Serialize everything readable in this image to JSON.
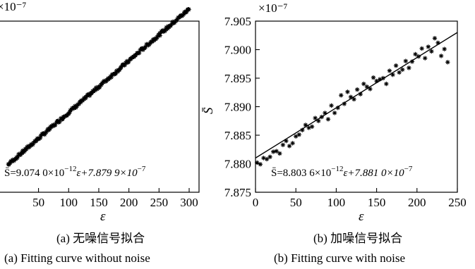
{
  "chart_data": [
    {
      "type": "scatter",
      "panel": "a",
      "title": "",
      "xlabel": "ε",
      "ylabel": "",
      "scale_label": "×10⁻⁷",
      "xlim": [
        0,
        300
      ],
      "ylim": [
        7.875,
        7.905
      ],
      "xticks": [
        "50",
        "100",
        "150",
        "200",
        "250",
        "300"
      ],
      "fit": {
        "slope_per_unit": 9.074e-12,
        "intercept_e7": 7.8799,
        "label_left": "S̄=9.074 0×10",
        "label_exp": "−12",
        "label_right": "ε+7.879 9×10",
        "label_exp2": "−7"
      },
      "series": [
        {
          "points": "dense noise-free scatter along fitted line from ε=0 to ε=300"
        }
      ],
      "caption_cn": "(a)  无噪信号拟合",
      "caption_en": "(a)  Fitting curve without noise"
    },
    {
      "type": "scatter",
      "panel": "b",
      "title": "",
      "xlabel": "ε",
      "ylabel": "S̄",
      "scale_label": "×10⁻⁷",
      "xlim": [
        0,
        250
      ],
      "ylim": [
        7.875,
        7.905
      ],
      "yticks": [
        "7.905",
        "7.900",
        "7.895",
        "7.890",
        "7.885",
        "7.880",
        "7.875"
      ],
      "xticks": [
        "0",
        "50",
        "100",
        "150",
        "200",
        "250"
      ],
      "fit": {
        "slope_per_unit": 8.8036e-12,
        "intercept_e7": 7.881,
        "label_left": "S̄=8.803 6×10",
        "label_exp": "−12",
        "label_right": "ε+7.881 0×10",
        "label_exp2": "−7"
      },
      "series": [
        {
          "x": [
            2,
            6,
            10,
            14,
            18,
            22,
            26,
            30,
            34,
            38,
            42,
            46,
            50,
            54,
            58,
            62,
            66,
            70,
            74,
            78,
            82,
            86,
            90,
            94,
            98,
            102,
            106,
            110,
            114,
            118,
            122,
            126,
            130,
            134,
            138,
            142,
            146,
            150,
            154,
            158,
            162,
            166,
            170,
            174,
            178,
            182,
            186,
            190,
            194,
            198,
            202,
            206,
            210,
            214,
            218,
            222,
            226,
            230,
            234,
            238
          ],
          "y": [
            7.8802,
            7.8799,
            7.881,
            7.8808,
            7.8812,
            7.8821,
            7.8822,
            7.8818,
            7.8833,
            7.884,
            7.8831,
            7.8836,
            7.8848,
            7.8851,
            7.8859,
            7.8868,
            7.8863,
            7.8865,
            7.888,
            7.8875,
            7.8882,
            7.8889,
            7.8878,
            7.8902,
            7.8889,
            7.8898,
            7.892,
            7.8905,
            7.8926,
            7.8917,
            7.8913,
            7.893,
            7.8922,
            7.894,
            7.8935,
            7.8931,
            7.8951,
            7.8945,
            7.8948,
            7.895,
            7.894,
            7.8963,
            7.8956,
            7.8972,
            7.896,
            7.8965,
            7.898,
            7.8968,
            7.8979,
            7.8992,
            7.8988,
            7.9002,
            7.8985,
            7.9005,
            7.8997,
            7.902,
            7.9012,
            7.8989,
            7.9001,
            7.8978
          ]
        }
      ],
      "caption_cn": "(b)  加噪信号拟合",
      "caption_en": "(b)  Fitting curve with noise"
    }
  ]
}
